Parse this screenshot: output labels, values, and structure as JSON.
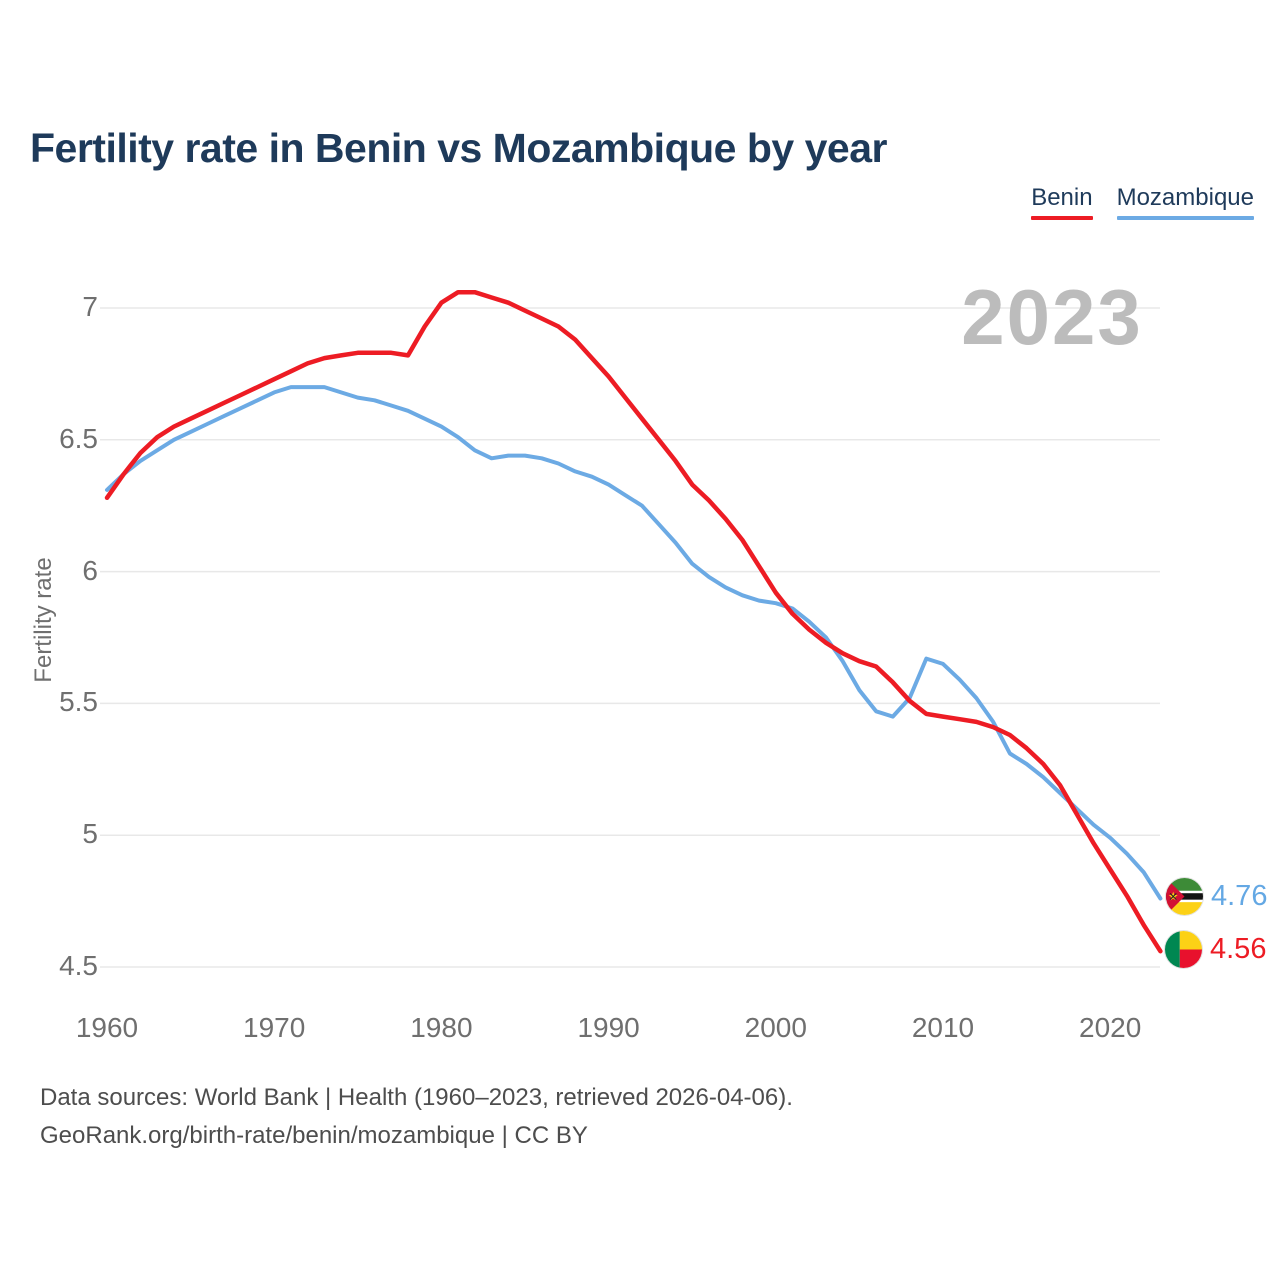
{
  "page": {
    "title": "Fertility rate in Benin vs Mozambique by year",
    "watermark": "2023",
    "footer_line1": "Data sources: World Bank | Health (1960–2023, retrieved 2026-04-06).",
    "footer_line2": "GeoRank.org/birth-rate/benin/mozambique | CC BY"
  },
  "legend": {
    "items": [
      {
        "label": "Benin",
        "color": "#ed1c24"
      },
      {
        "label": "Mozambique",
        "color": "#6caae4"
      }
    ]
  },
  "end_labels": {
    "mozambique": "4.76",
    "benin": "4.56"
  },
  "chart_data": {
    "type": "line",
    "title": "Fertility rate in Benin vs Mozambique by year",
    "xlabel": "",
    "ylabel": "Fertility rate",
    "grid": "horizontal",
    "legend_position": "top-right",
    "ylim": [
      4.25,
      7.2
    ],
    "xlim": [
      1960,
      2023
    ],
    "y_ticks": [
      7,
      6.5,
      6,
      5.5,
      5,
      4.5
    ],
    "y_tick_labels": [
      "7",
      "6.5",
      "6",
      "5.5",
      "5",
      "4.5"
    ],
    "x_ticks": [
      1960,
      1970,
      1980,
      1990,
      2000,
      2010,
      2020
    ],
    "x_tick_labels": [
      "1960",
      "1970",
      "1980",
      "1990",
      "2000",
      "2010",
      "2020"
    ],
    "x": [
      1960,
      1961,
      1962,
      1963,
      1964,
      1965,
      1966,
      1967,
      1968,
      1969,
      1970,
      1971,
      1972,
      1973,
      1974,
      1975,
      1976,
      1977,
      1978,
      1979,
      1980,
      1981,
      1982,
      1983,
      1984,
      1985,
      1986,
      1987,
      1988,
      1989,
      1990,
      1991,
      1992,
      1993,
      1994,
      1995,
      1996,
      1997,
      1998,
      1999,
      2000,
      2001,
      2002,
      2003,
      2004,
      2005,
      2006,
      2007,
      2008,
      2009,
      2010,
      2011,
      2012,
      2013,
      2014,
      2015,
      2016,
      2017,
      2018,
      2019,
      2020,
      2021,
      2022,
      2023
    ],
    "series": [
      {
        "name": "Benin",
        "color": "#ed1c24",
        "end_label": "4.56",
        "values": [
          6.28,
          6.37,
          6.45,
          6.51,
          6.55,
          6.58,
          6.61,
          6.64,
          6.67,
          6.7,
          6.73,
          6.76,
          6.79,
          6.81,
          6.82,
          6.83,
          6.83,
          6.83,
          6.82,
          6.93,
          7.02,
          7.06,
          7.06,
          7.04,
          7.02,
          6.99,
          6.96,
          6.93,
          6.88,
          6.81,
          6.74,
          6.66,
          6.58,
          6.5,
          6.42,
          6.33,
          6.27,
          6.2,
          6.12,
          6.02,
          5.92,
          5.84,
          5.78,
          5.73,
          5.69,
          5.66,
          5.64,
          5.58,
          5.51,
          5.46,
          5.45,
          5.44,
          5.43,
          5.41,
          5.38,
          5.33,
          5.27,
          5.19,
          5.08,
          4.97,
          4.87,
          4.77,
          4.66,
          4.56
        ]
      },
      {
        "name": "Mozambique",
        "color": "#6caae4",
        "end_label": "4.76",
        "values": [
          6.31,
          6.37,
          6.42,
          6.46,
          6.5,
          6.53,
          6.56,
          6.59,
          6.62,
          6.65,
          6.68,
          6.7,
          6.7,
          6.7,
          6.68,
          6.66,
          6.65,
          6.63,
          6.61,
          6.58,
          6.55,
          6.51,
          6.46,
          6.43,
          6.44,
          6.44,
          6.43,
          6.41,
          6.38,
          6.36,
          6.33,
          6.29,
          6.25,
          6.18,
          6.11,
          6.03,
          5.98,
          5.94,
          5.91,
          5.89,
          5.88,
          5.86,
          5.81,
          5.75,
          5.66,
          5.55,
          5.47,
          5.45,
          5.52,
          5.67,
          5.65,
          5.59,
          5.52,
          5.43,
          5.31,
          5.27,
          5.22,
          5.16,
          5.1,
          5.04,
          4.99,
          4.93,
          4.86,
          4.76
        ]
      }
    ]
  }
}
